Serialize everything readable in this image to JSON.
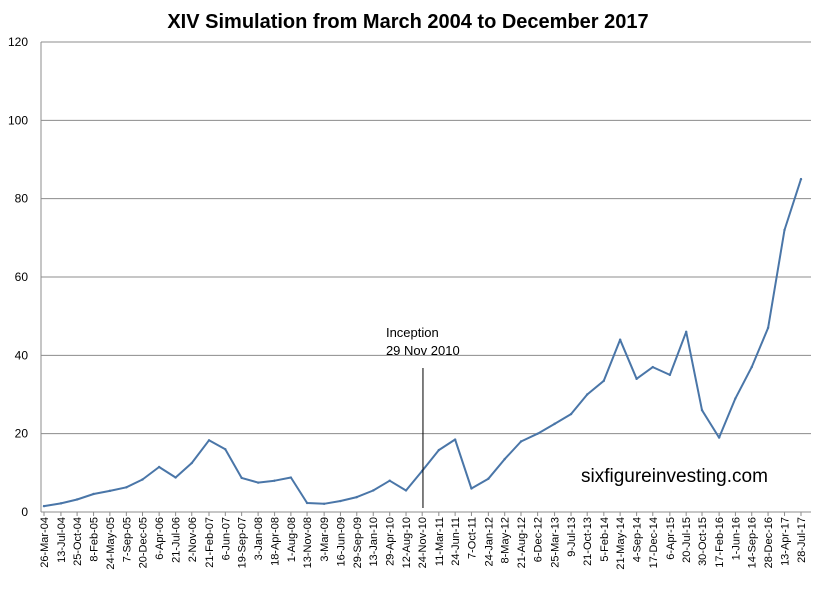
{
  "chart_data": {
    "type": "line",
    "title": "XIV Simulation from March 2004 to December 2017",
    "xlabel": "",
    "ylabel": "",
    "ylim": [
      0,
      120
    ],
    "yticks": [
      0,
      20,
      40,
      60,
      80,
      100,
      120
    ],
    "grid": "horizontal",
    "legend": "none",
    "x_tick_labels": [
      "26-Mar-04",
      "13-Jul-04",
      "25-Oct-04",
      "8-Feb-05",
      "24-May-05",
      "7-Sep-05",
      "20-Dec-05",
      "6-Apr-06",
      "21-Jul-06",
      "2-Nov-06",
      "21-Feb-07",
      "6-Jun-07",
      "19-Sep-07",
      "3-Jan-08",
      "18-Apr-08",
      "1-Aug-08",
      "13-Nov-08",
      "3-Mar-09",
      "16-Jun-09",
      "29-Sep-09",
      "13-Jan-10",
      "29-Apr-10",
      "12-Aug-10",
      "24-Nov-10",
      "11-Mar-11",
      "24-Jun-11",
      "7-Oct-11",
      "24-Jan-12",
      "8-May-12",
      "21-Aug-12",
      "6-Dec-12",
      "25-Mar-13",
      "9-Jul-13",
      "21-Oct-13",
      "5-Feb-14",
      "21-May-14",
      "4-Sep-14",
      "17-Dec-14",
      "6-Apr-15",
      "20-Jul-15",
      "30-Oct-15",
      "17-Feb-16",
      "1-Jun-16",
      "14-Sep-16",
      "28-Dec-16",
      "13-Apr-17",
      "28-Jul-17"
    ],
    "series": [
      {
        "color": "#4a76a8",
        "x": [
          "26-Mar-04",
          "13-Jul-04",
          "25-Oct-04",
          "8-Feb-05",
          "24-May-05",
          "7-Sep-05",
          "20-Dec-05",
          "6-Apr-06",
          "21-Jul-06",
          "2-Nov-06",
          "21-Feb-07",
          "6-Jun-07",
          "19-Sep-07",
          "3-Jan-08",
          "18-Apr-08",
          "1-Aug-08",
          "13-Nov-08",
          "3-Mar-09",
          "16-Jun-09",
          "29-Sep-09",
          "13-Jan-10",
          "29-Apr-10",
          "12-Aug-10",
          "24-Nov-10",
          "11-Mar-11",
          "24-Jun-11",
          "7-Oct-11",
          "24-Jan-12",
          "8-May-12",
          "21-Aug-12",
          "6-Dec-12",
          "25-Mar-13",
          "9-Jul-13",
          "21-Oct-13",
          "5-Feb-14",
          "21-May-14",
          "4-Sep-14",
          "17-Dec-14",
          "6-Apr-15",
          "20-Jul-15",
          "30-Oct-15",
          "17-Feb-16",
          "1-Jun-16",
          "14-Sep-16",
          "28-Dec-16",
          "13-Apr-17",
          "28-Jul-17"
        ],
        "values": [
          1.5,
          2.2,
          3.2,
          4.6,
          5.4,
          6.3,
          8.3,
          11.5,
          8.8,
          12.5,
          18.3,
          16.0,
          8.7,
          7.5,
          8.0,
          8.8,
          2.3,
          2.1,
          2.8,
          3.8,
          5.5,
          8.0,
          5.5,
          10.5,
          15.8,
          18.5,
          6.0,
          8.5,
          13.5,
          18.0,
          20.0,
          22.5,
          25.0,
          30.0,
          33.5,
          44.0,
          34.0,
          37.0,
          35.0,
          46.0,
          26.0,
          19.0,
          29.0,
          37.0,
          47.0,
          72.0,
          85.0
        ]
      }
    ],
    "annotations": [
      {
        "text": "Inception",
        "at_x": "29-Nov-10"
      },
      {
        "text": "29 Nov 2010",
        "at_x": "29-Nov-10"
      }
    ],
    "watermark": "sixfigureinvesting.com"
  }
}
